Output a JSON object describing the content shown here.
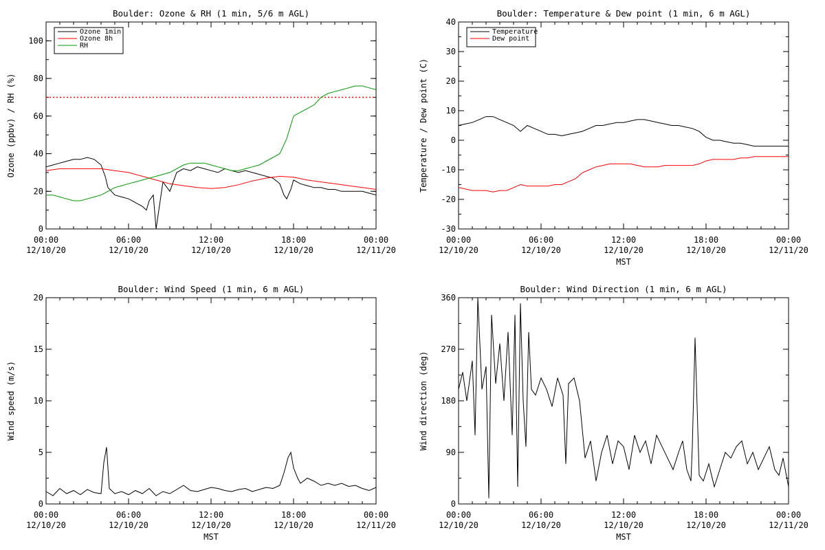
{
  "chart_data": [
    {
      "type": "line",
      "title": "Boulder: Ozone & RH (1 min, 5/6 m AGL)",
      "ylabel": "Ozone (ppbv) / RH (%)",
      "xlabel": "",
      "xlim": [
        0,
        24
      ],
      "ylim": [
        0,
        110
      ],
      "yticks": [
        0,
        20,
        40,
        60,
        80,
        100
      ],
      "xticks": [
        {
          "x": 0,
          "top": "00:00",
          "bottom": "12/10/20"
        },
        {
          "x": 6,
          "top": "06:00",
          "bottom": "12/10/20"
        },
        {
          "x": 12,
          "top": "12:00",
          "bottom": "12/10/20"
        },
        {
          "x": 18,
          "top": "18:00",
          "bottom": "12/10/20"
        },
        {
          "x": 24,
          "top": "00:00",
          "bottom": "12/11/20"
        }
      ],
      "legend": "top-left",
      "reference_line": {
        "y": 70,
        "color": "#ff0000",
        "style": "dotted"
      },
      "series": [
        {
          "name": "Ozone 1min",
          "color": "#000000",
          "x": [
            0,
            0.5,
            1,
            1.5,
            2,
            2.5,
            3,
            3.5,
            4,
            4.3,
            4.5,
            5,
            5.5,
            6,
            6.5,
            7,
            7.3,
            7.5,
            7.8,
            8,
            8.3,
            8.5,
            9,
            9.5,
            10,
            10.5,
            11,
            11.5,
            12,
            12.5,
            13,
            13.5,
            14,
            14.5,
            15,
            15.5,
            16,
            16.5,
            17,
            17.3,
            17.5,
            17.8,
            18,
            18.5,
            19,
            19.5,
            20,
            20.5,
            21,
            21.5,
            22,
            22.5,
            23,
            23.5,
            24
          ],
          "y": [
            33,
            34,
            35,
            36,
            37,
            37,
            38,
            37,
            34,
            28,
            22,
            18,
            17,
            16,
            14,
            12,
            10,
            15,
            18,
            0,
            15,
            25,
            20,
            30,
            32,
            31,
            33,
            32,
            31,
            30,
            32,
            31,
            30,
            31,
            30,
            29,
            28,
            27,
            24,
            18,
            16,
            21,
            26,
            24,
            23,
            22,
            22,
            21,
            21,
            20,
            20,
            20,
            20,
            19,
            18
          ]
        },
        {
          "name": "Ozone 8h",
          "color": "#ff0000",
          "x": [
            0,
            1,
            2,
            3,
            4,
            5,
            6,
            7,
            8,
            9,
            10,
            11,
            12,
            13,
            14,
            15,
            16,
            17,
            18,
            19,
            20,
            21,
            22,
            23,
            24
          ],
          "y": [
            31,
            32,
            32,
            32,
            32,
            31,
            30,
            28,
            26,
            24,
            23,
            22,
            21.5,
            22,
            23.5,
            25.5,
            27,
            28,
            27.5,
            26,
            25,
            24,
            23,
            22,
            21
          ]
        },
        {
          "name": "RH",
          "color": "#009900",
          "x": [
            0,
            0.5,
            1,
            1.5,
            2,
            2.5,
            3,
            3.5,
            4,
            4.5,
            5,
            5.5,
            6,
            6.5,
            7,
            7.5,
            8,
            8.5,
            9,
            9.5,
            10,
            10.5,
            11,
            11.5,
            12,
            12.5,
            13,
            13.5,
            14,
            14.5,
            15,
            15.5,
            16,
            16.5,
            17,
            17.5,
            18,
            18.5,
            19,
            19.5,
            20,
            20.5,
            21,
            21.5,
            22,
            22.5,
            23,
            23.5,
            24
          ],
          "y": [
            18,
            18,
            17,
            16,
            15,
            15,
            16,
            17,
            18,
            20,
            22,
            23,
            24,
            25,
            26,
            27,
            28,
            29,
            30,
            32,
            34,
            35,
            35,
            35,
            34,
            33,
            32,
            31,
            31,
            32,
            33,
            34,
            36,
            38,
            40,
            48,
            60,
            62,
            64,
            66,
            70,
            72,
            73,
            74,
            75,
            76,
            76,
            75,
            74
          ]
        }
      ]
    },
    {
      "type": "line",
      "title": "Boulder: Temperature & Dew point (1 min, 6 m AGL)",
      "ylabel": "Temperature / Dew point (C)",
      "xlabel": "MST",
      "xlim": [
        0,
        24
      ],
      "ylim": [
        -30,
        40
      ],
      "yticks": [
        -30,
        -20,
        -10,
        0,
        10,
        20,
        30,
        40
      ],
      "xticks": [
        {
          "x": 0,
          "top": "00:00",
          "bottom": "12/10/20"
        },
        {
          "x": 6,
          "top": "06:00",
          "bottom": "12/10/20"
        },
        {
          "x": 12,
          "top": "12:00",
          "bottom": "12/10/20"
        },
        {
          "x": 18,
          "top": "18:00",
          "bottom": "12/10/20"
        },
        {
          "x": 24,
          "top": "00:00",
          "bottom": "12/11/20"
        }
      ],
      "legend": "top-left",
      "series": [
        {
          "name": "Temperature",
          "color": "#000000",
          "x": [
            0,
            0.5,
            1,
            1.5,
            2,
            2.5,
            3,
            3.5,
            4,
            4.5,
            5,
            5.5,
            6,
            6.5,
            7,
            7.5,
            8,
            8.5,
            9,
            9.5,
            10,
            10.5,
            11,
            11.5,
            12,
            12.5,
            13,
            13.5,
            14,
            14.5,
            15,
            15.5,
            16,
            16.5,
            17,
            17.5,
            18,
            18.5,
            19,
            19.5,
            20,
            20.5,
            21,
            21.5,
            22,
            22.5,
            23,
            23.5,
            24
          ],
          "y": [
            5,
            5.5,
            6,
            7,
            8,
            8,
            7,
            6,
            5,
            3,
            5,
            4,
            3,
            2,
            2,
            1.5,
            2,
            2.5,
            3,
            4,
            5,
            5,
            5.5,
            6,
            6,
            6.5,
            7,
            7,
            6.5,
            6,
            5.5,
            5,
            5,
            4.5,
            4,
            3,
            1,
            0,
            0,
            -0.5,
            -1,
            -1,
            -1.5,
            -2,
            -2,
            -2,
            -2,
            -2,
            -2
          ]
        },
        {
          "name": "Dew point",
          "color": "#ff0000",
          "x": [
            0,
            0.5,
            1,
            1.5,
            2,
            2.5,
            3,
            3.5,
            4,
            4.5,
            5,
            5.5,
            6,
            6.5,
            7,
            7.5,
            8,
            8.5,
            9,
            9.5,
            10,
            10.5,
            11,
            11.5,
            12,
            12.5,
            13,
            13.5,
            14,
            14.5,
            15,
            15.5,
            16,
            16.5,
            17,
            17.5,
            18,
            18.5,
            19,
            19.5,
            20,
            20.5,
            21,
            21.5,
            22,
            22.5,
            23,
            23.5,
            24
          ],
          "y": [
            -16,
            -16.5,
            -17,
            -17,
            -17,
            -17.5,
            -17,
            -17,
            -16,
            -15,
            -15.5,
            -15.5,
            -15.5,
            -15.5,
            -15,
            -15,
            -14,
            -13,
            -11,
            -10,
            -9,
            -8.5,
            -8,
            -8,
            -8,
            -8,
            -8.5,
            -9,
            -9,
            -9,
            -8.5,
            -8.5,
            -8.5,
            -8.5,
            -8.5,
            -8,
            -7,
            -6.5,
            -6.5,
            -6.5,
            -6.5,
            -6,
            -6,
            -5.5,
            -5.5,
            -5.5,
            -5.5,
            -5.5,
            -5.5
          ]
        }
      ]
    },
    {
      "type": "line",
      "title": "Boulder: Wind Speed (1 min, 6 m AGL)",
      "ylabel": "Wind speed (m/s)",
      "xlabel": "MST",
      "xlim": [
        0,
        24
      ],
      "ylim": [
        0,
        20
      ],
      "yticks": [
        0,
        5,
        10,
        15,
        20
      ],
      "xticks": [
        {
          "x": 0,
          "top": "00:00",
          "bottom": "12/10/20"
        },
        {
          "x": 6,
          "top": "06:00",
          "bottom": "12/10/20"
        },
        {
          "x": 12,
          "top": "12:00",
          "bottom": "12/10/20"
        },
        {
          "x": 18,
          "top": "18:00",
          "bottom": "12/10/20"
        },
        {
          "x": 24,
          "top": "00:00",
          "bottom": "12/11/20"
        }
      ],
      "series": [
        {
          "color": "#000000",
          "x": [
            0,
            0.5,
            1,
            1.5,
            2,
            2.5,
            3,
            3.5,
            4,
            4.2,
            4.4,
            4.6,
            5,
            5.5,
            6,
            6.5,
            7,
            7.5,
            8,
            8.5,
            9,
            9.5,
            10,
            10.5,
            11,
            11.5,
            12,
            12.5,
            13,
            13.5,
            14,
            14.5,
            15,
            15.5,
            16,
            16.5,
            17,
            17.3,
            17.6,
            17.8,
            18,
            18.3,
            18.5,
            19,
            19.5,
            20,
            20.5,
            21,
            21.5,
            22,
            22.5,
            23,
            23.5,
            24
          ],
          "y": [
            1.2,
            0.8,
            1.5,
            1.0,
            1.3,
            0.9,
            1.4,
            1.1,
            1.0,
            4.0,
            5.5,
            1.5,
            1.0,
            1.2,
            0.9,
            1.3,
            1.0,
            1.5,
            0.8,
            1.2,
            1.0,
            1.4,
            1.8,
            1.3,
            1.2,
            1.4,
            1.6,
            1.5,
            1.3,
            1.2,
            1.4,
            1.5,
            1.2,
            1.4,
            1.6,
            1.5,
            1.8,
            3.0,
            4.5,
            5.0,
            3.5,
            2.5,
            2.0,
            2.5,
            2.2,
            1.8,
            2.0,
            1.8,
            2.0,
            1.7,
            1.8,
            1.5,
            1.3,
            1.6
          ]
        }
      ]
    },
    {
      "type": "line",
      "title": "Boulder: Wind Direction (1 min, 6 m AGL)",
      "ylabel": "Wind direction (deg)",
      "xlabel": "MST",
      "xlim": [
        0,
        24
      ],
      "ylim": [
        0,
        360
      ],
      "yticks": [
        0,
        90,
        180,
        270,
        360
      ],
      "xticks": [
        {
          "x": 0,
          "top": "00:00",
          "bottom": "12/10/20"
        },
        {
          "x": 6,
          "top": "06:00",
          "bottom": "12/10/20"
        },
        {
          "x": 12,
          "top": "12:00",
          "bottom": "12/10/20"
        },
        {
          "x": 18,
          "top": "18:00",
          "bottom": "12/10/20"
        },
        {
          "x": 24,
          "top": "00:00",
          "bottom": "12/11/20"
        }
      ],
      "series": [
        {
          "color": "#000000",
          "x": [
            0,
            0.3,
            0.6,
            1,
            1.2,
            1.4,
            1.7,
            2,
            2.2,
            2.4,
            2.7,
            3,
            3.3,
            3.6,
            3.9,
            4.1,
            4.3,
            4.5,
            4.7,
            4.9,
            5.1,
            5.3,
            5.6,
            6,
            6.4,
            6.8,
            7.2,
            7.6,
            7.8,
            8,
            8.4,
            8.8,
            9.2,
            9.6,
            10,
            10.4,
            10.8,
            11.2,
            11.6,
            12,
            12.4,
            12.8,
            13.2,
            13.6,
            14,
            14.4,
            14.8,
            15.2,
            15.6,
            16,
            16.3,
            16.6,
            16.9,
            17,
            17.2,
            17.5,
            17.8,
            18.2,
            18.6,
            19,
            19.4,
            19.8,
            20.2,
            20.6,
            21,
            21.4,
            21.8,
            22.2,
            22.6,
            23,
            23.3,
            23.6,
            24
          ],
          "y": [
            200,
            230,
            180,
            250,
            120,
            360,
            200,
            240,
            10,
            330,
            210,
            280,
            180,
            300,
            120,
            330,
            30,
            350,
            180,
            100,
            300,
            200,
            190,
            220,
            200,
            170,
            220,
            190,
            70,
            210,
            220,
            180,
            80,
            110,
            40,
            90,
            120,
            70,
            110,
            100,
            60,
            120,
            90,
            110,
            70,
            120,
            100,
            80,
            60,
            90,
            110,
            60,
            40,
            100,
            290,
            50,
            40,
            70,
            30,
            60,
            90,
            80,
            100,
            110,
            70,
            90,
            60,
            80,
            100,
            60,
            50,
            80,
            30
          ]
        }
      ]
    }
  ]
}
